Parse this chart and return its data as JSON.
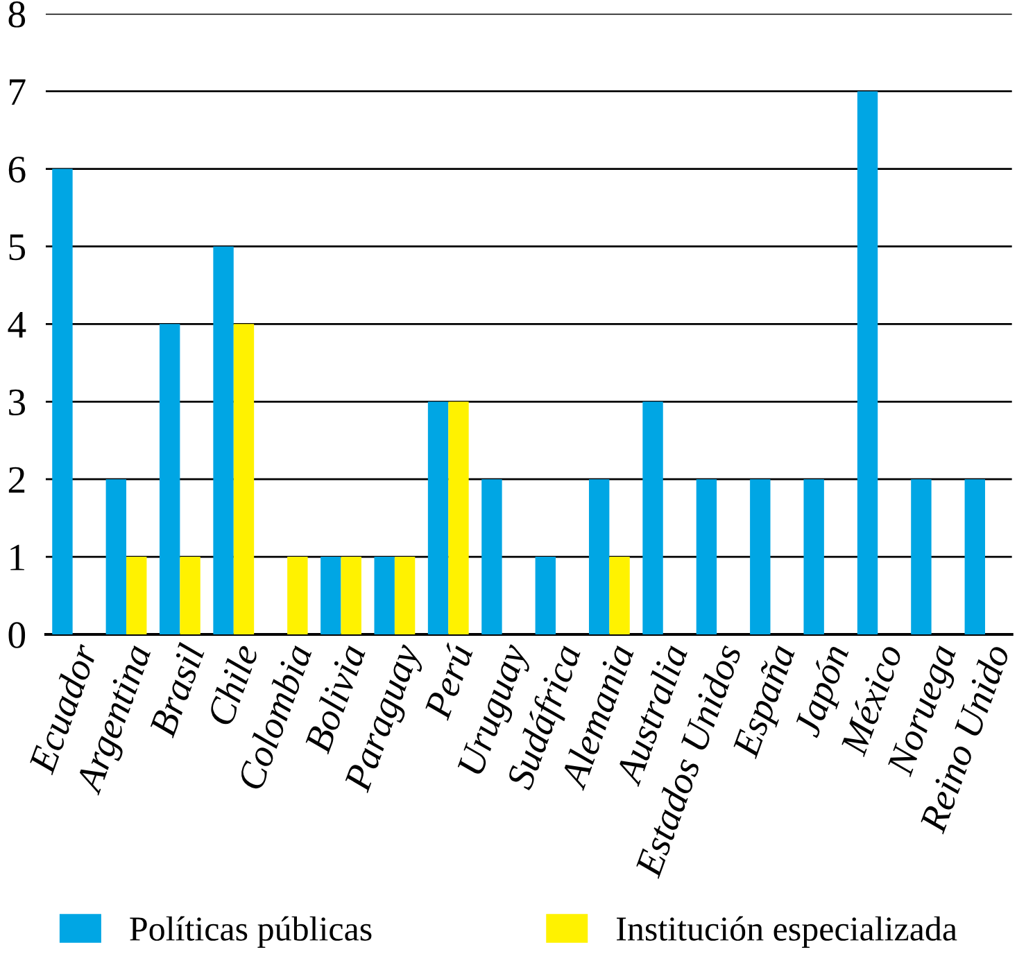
{
  "chart_data": {
    "type": "bar",
    "categories": [
      "Ecuador",
      "Argentina",
      "Brasil",
      "Chile",
      "Colombia",
      "Bolivia",
      "Paraguay",
      "Perú",
      "Uruguay",
      "Sudáfrica",
      "Alemania",
      "Australia",
      "Estados Unidos",
      "España",
      "Japón",
      "México",
      "Noruega",
      "Reino Unido"
    ],
    "series": [
      {
        "name": "Políticas públicas",
        "color": "#00a6e4",
        "values": [
          6,
          2,
          4,
          5,
          0,
          1,
          1,
          3,
          2,
          1,
          2,
          3,
          2,
          2,
          2,
          7,
          2,
          2
        ]
      },
      {
        "name": "Institución especializada",
        "color": "#fff200",
        "values": [
          0,
          1,
          1,
          4,
          1,
          1,
          1,
          3,
          0,
          0,
          1,
          0,
          0,
          0,
          0,
          0,
          0,
          0
        ]
      }
    ],
    "ylim": [
      0,
      8
    ],
    "yticks": [
      0,
      1,
      2,
      3,
      4,
      5,
      6,
      7,
      8
    ],
    "grid": "y",
    "legend": "bottom"
  }
}
